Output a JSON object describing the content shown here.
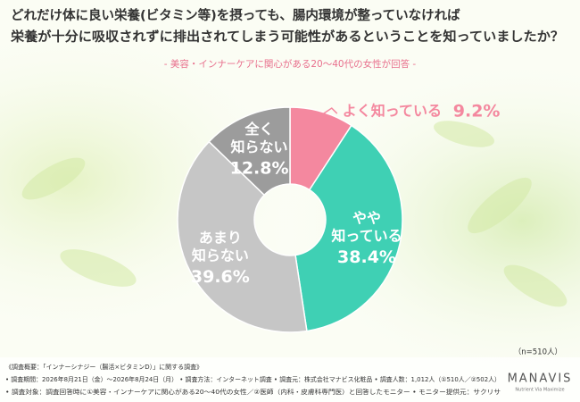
{
  "chart_data": {
    "type": "donut",
    "title": [
      "どれだけ体に良い栄養(ビタミン等)を摂っても、腸内環境が整っていなければ",
      "栄養が十分に吸収されずに排出されてしまう可能性があるということを知っていましたか？"
    ],
    "subtitle": "- 美容・インナーケアに関心がある20～40代の女性が回答 -",
    "categories": [
      "よく知っている",
      "やや\n知っている",
      "あまり\n知らない",
      "全く\n知らない"
    ],
    "values": [
      9.2,
      38.4,
      39.6,
      12.8
    ],
    "value_labels": [
      "9.2%",
      "38.4%",
      "39.6%",
      "12.8%"
    ],
    "colors": [
      "#f4889f",
      "#3fd0b4",
      "#c6c6c6",
      "#9c9c9c"
    ],
    "sample_note": "（n=510人）",
    "footnotes": [
      "《調査概要：「インナーシナジー（腸活×ビタミンD）」に関する調査》",
      "• 調査期間：2026年8月21日（金）～2026年8月24日（月）  • 調査方法：インターネット調査  • 調査元：株式会社マナビス化粧品  • 調査人数：1,012人（①510人／②502人）",
      "• 調査対象：調査回答時に①美容・インナーケアに関心がある20～40代の女性／②医師（内科・皮膚科専門医）と回答したモニター  • モニター提供元：サクリサ"
    ],
    "logo": "MANAVIS",
    "logo_tagline": "Nutrient Via Maximize"
  }
}
